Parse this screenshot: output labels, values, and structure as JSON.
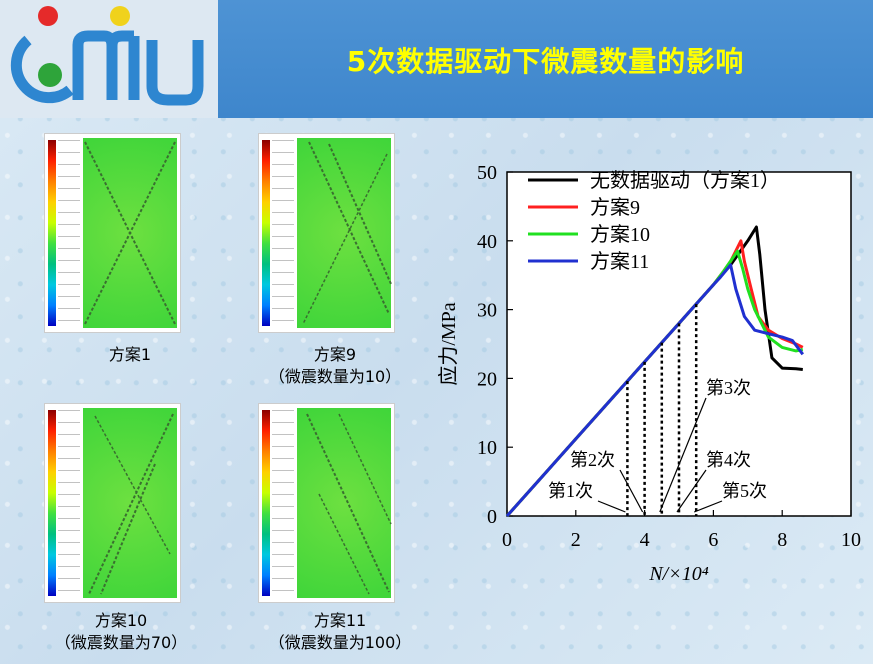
{
  "header": {
    "title": "5次数据驱动下微震数量的影响"
  },
  "panels": [
    {
      "name": "方案1",
      "note": ""
    },
    {
      "name": "方案9",
      "note": "（微震数量为10）"
    },
    {
      "name": "方案10",
      "note": "（微震数量为70）"
    },
    {
      "name": "方案11",
      "note": "（微震数量为100）"
    }
  ],
  "colors": {
    "title": "#ffff00",
    "header": "#4e93d4"
  },
  "chart_data": {
    "type": "line",
    "xlabel": "N/×10⁴",
    "ylabel": "应力/MPa",
    "xlim": [
      0,
      10
    ],
    "ylim": [
      0,
      50
    ],
    "xticks": [
      0,
      2,
      4,
      6,
      8,
      10
    ],
    "yticks": [
      0,
      10,
      20,
      30,
      40,
      50
    ],
    "grid": false,
    "legend_position": "top-right",
    "series": [
      {
        "name": "无数据驱动（方案1）",
        "color": "#000000",
        "points": [
          [
            0,
            0
          ],
          [
            1,
            5.6
          ],
          [
            2,
            11.2
          ],
          [
            3,
            16.8
          ],
          [
            4,
            22.4
          ],
          [
            5,
            28
          ],
          [
            6,
            33.6
          ],
          [
            6.5,
            36.5
          ],
          [
            7,
            40
          ],
          [
            7.25,
            42
          ],
          [
            7.35,
            38
          ],
          [
            7.5,
            30
          ],
          [
            7.7,
            23
          ],
          [
            8,
            21.5
          ],
          [
            8.4,
            21.4
          ],
          [
            8.6,
            21.3
          ]
        ]
      },
      {
        "name": "方案9",
        "color": "#ff2020",
        "points": [
          [
            0,
            0
          ],
          [
            1,
            5.6
          ],
          [
            2,
            11.2
          ],
          [
            3,
            16.8
          ],
          [
            4,
            22.4
          ],
          [
            5,
            28
          ],
          [
            6,
            33.6
          ],
          [
            6.3,
            35.6
          ],
          [
            6.5,
            37
          ],
          [
            6.8,
            40
          ],
          [
            6.9,
            37
          ],
          [
            7.1,
            33
          ],
          [
            7.3,
            29
          ],
          [
            7.6,
            27
          ],
          [
            8,
            25.8
          ],
          [
            8.4,
            25
          ],
          [
            8.6,
            24.5
          ]
        ]
      },
      {
        "name": "方案10",
        "color": "#20e020",
        "points": [
          [
            0,
            0
          ],
          [
            1,
            5.6
          ],
          [
            2,
            11.2
          ],
          [
            3,
            16.8
          ],
          [
            4,
            22.4
          ],
          [
            5,
            28
          ],
          [
            6,
            33.6
          ],
          [
            6.3,
            35.6
          ],
          [
            6.7,
            38.5
          ],
          [
            6.85,
            36
          ],
          [
            7,
            33
          ],
          [
            7.2,
            30
          ],
          [
            7.6,
            26
          ],
          [
            8,
            24.5
          ],
          [
            8.4,
            24
          ],
          [
            8.6,
            24.2
          ]
        ]
      },
      {
        "name": "方案11",
        "color": "#2030d0",
        "points": [
          [
            0,
            0
          ],
          [
            1,
            5.6
          ],
          [
            2,
            11.2
          ],
          [
            3,
            16.8
          ],
          [
            4,
            22.4
          ],
          [
            5,
            28
          ],
          [
            6,
            33.6
          ],
          [
            6.2,
            34.7
          ],
          [
            6.5,
            36.5
          ],
          [
            6.65,
            33
          ],
          [
            6.9,
            29
          ],
          [
            7.2,
            27
          ],
          [
            7.6,
            26.5
          ],
          [
            8,
            26
          ],
          [
            8.3,
            25.5
          ],
          [
            8.6,
            23.5
          ]
        ]
      }
    ],
    "annotations": [
      {
        "label": "第1次",
        "x": 3.5
      },
      {
        "label": "第2次",
        "x": 4.0
      },
      {
        "label": "第3次",
        "x": 4.5
      },
      {
        "label": "第4次",
        "x": 5.0
      },
      {
        "label": "第5次",
        "x": 5.5
      }
    ]
  }
}
